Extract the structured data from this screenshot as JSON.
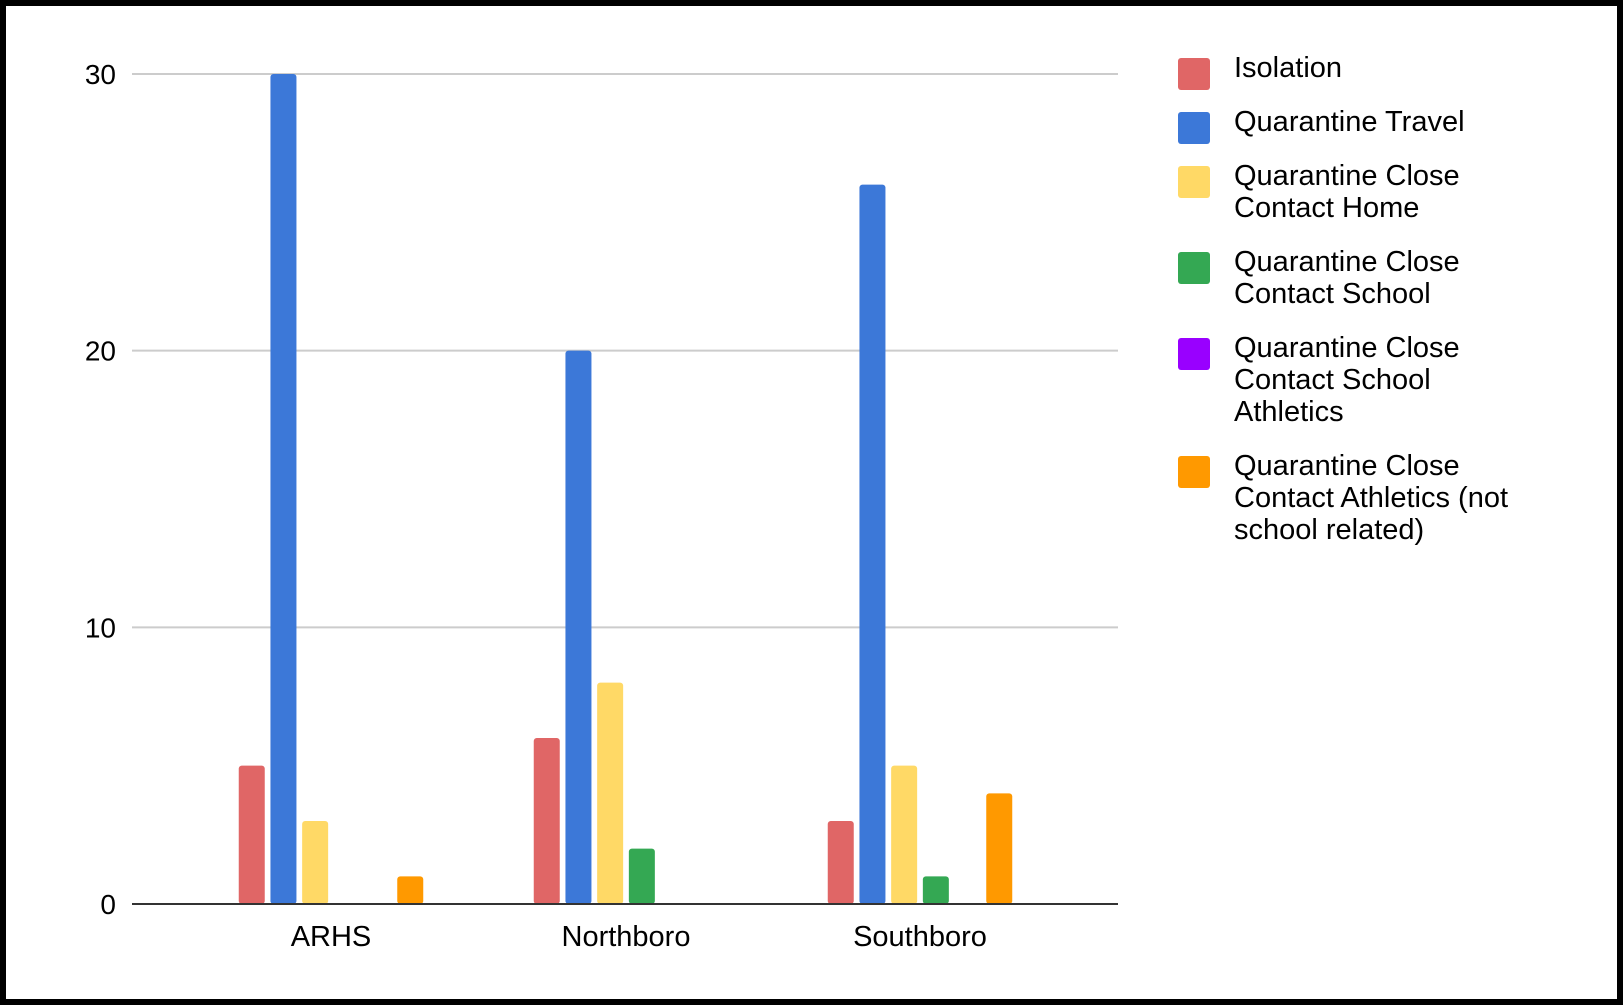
{
  "chart_data": {
    "type": "bar",
    "categories": [
      "ARHS",
      "Northboro",
      "Southboro"
    ],
    "series": [
      {
        "name": "Isolation",
        "color": "#e06666",
        "values": [
          5,
          6,
          3
        ]
      },
      {
        "name": "Quarantine Travel",
        "color": "#3c78d8",
        "values": [
          30,
          20,
          26
        ]
      },
      {
        "name": "Quarantine Close Contact Home",
        "color": "#ffd966",
        "values": [
          3,
          8,
          5
        ]
      },
      {
        "name": "Quarantine Close Contact School",
        "color": "#34a853",
        "values": [
          0,
          2,
          1
        ]
      },
      {
        "name": "Quarantine Close Contact School Athletics",
        "color": "#9900ff",
        "values": [
          0,
          0,
          0
        ]
      },
      {
        "name": "Quarantine Close Contact Athletics (not school related)",
        "color": "#ff9900",
        "values": [
          1,
          0,
          4
        ]
      }
    ],
    "yticks": [
      "0",
      "10",
      "20",
      "30"
    ],
    "ylim": [
      0,
      30
    ],
    "grid": true,
    "legend_position": "right",
    "title": "",
    "xlabel": "",
    "ylabel": ""
  }
}
